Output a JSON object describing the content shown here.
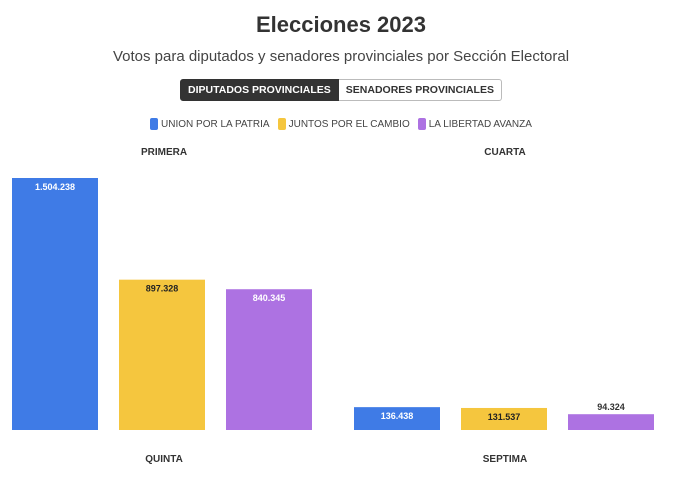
{
  "header": {
    "title": "Elecciones 2023",
    "subtitle": "Votos para diputados y senadores provinciales por Sección Electoral"
  },
  "tabs": [
    {
      "label": "DIPUTADOS PROVINCIALES",
      "active": true
    },
    {
      "label": "SENADORES PROVINCIALES",
      "active": false
    }
  ],
  "legend": [
    {
      "label": "UNION POR LA PATRIA",
      "color": "#3F7BE6"
    },
    {
      "label": "JUNTOS POR EL CAMBIO",
      "color": "#F5C63E"
    },
    {
      "label": "LA LIBERTAD AVANZA",
      "color": "#AD72E2"
    }
  ],
  "chart_data": {
    "type": "bar",
    "series_names": [
      "UNION POR LA PATRIA",
      "JUNTOS POR EL CAMBIO",
      "LA LIBERTAD AVANZA"
    ],
    "colors": [
      "#3F7BE6",
      "#F5C63E",
      "#AD72E2"
    ],
    "ylim": [
      0,
      1504238
    ],
    "panels": [
      {
        "top_label": "PRIMERA",
        "bottom_label": "QUINTA",
        "values": [
          1504238,
          897328,
          840345
        ],
        "value_labels": [
          "1.504.238",
          "897.328",
          "840.345"
        ]
      },
      {
        "top_label": "CUARTA",
        "bottom_label": "SEPTIMA",
        "values": [
          136438,
          131537,
          94324
        ],
        "value_labels": [
          "136.438",
          "131.537",
          "94.324"
        ]
      }
    ]
  }
}
